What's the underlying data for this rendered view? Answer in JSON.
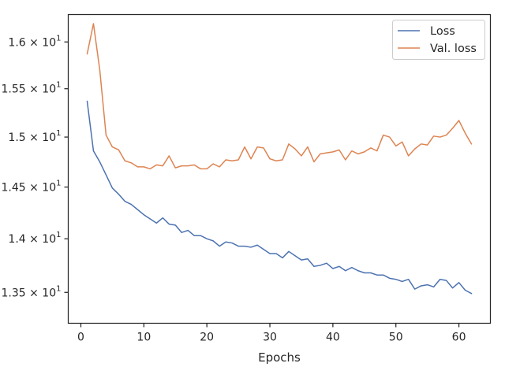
{
  "chart_data": {
    "type": "line",
    "title": "",
    "xlabel": "Epochs",
    "ylabel": "",
    "yscale": "log",
    "xlim": [
      -2,
      65
    ],
    "ylim": [
      13.22,
      16.3
    ],
    "x_ticks": [
      {
        "value": 0,
        "label": "0"
      },
      {
        "value": 10,
        "label": "10"
      },
      {
        "value": 20,
        "label": "20"
      },
      {
        "value": 30,
        "label": "30"
      },
      {
        "value": 40,
        "label": "40"
      },
      {
        "value": 50,
        "label": "50"
      },
      {
        "value": 60,
        "label": "60"
      }
    ],
    "y_ticks": [
      {
        "value": 13.5,
        "mantissa": "1.35",
        "base": "10",
        "exp": "1"
      },
      {
        "value": 14.0,
        "mantissa": "1.4",
        "base": "10",
        "exp": "1"
      },
      {
        "value": 14.5,
        "mantissa": "1.45",
        "base": "10",
        "exp": "1"
      },
      {
        "value": 15.0,
        "mantissa": "1.5",
        "base": "10",
        "exp": "1"
      },
      {
        "value": 15.5,
        "mantissa": "1.55",
        "base": "10",
        "exp": "1"
      },
      {
        "value": 16.0,
        "mantissa": "1.6",
        "base": "10",
        "exp": "1"
      }
    ],
    "legend_position": "top-right",
    "series": [
      {
        "name": "Loss",
        "color": "#4c72b0",
        "x": [
          1,
          2,
          3,
          4,
          5,
          6,
          7,
          8,
          9,
          10,
          11,
          12,
          13,
          14,
          15,
          16,
          17,
          18,
          19,
          20,
          21,
          22,
          23,
          24,
          25,
          26,
          27,
          28,
          29,
          30,
          31,
          32,
          33,
          34,
          35,
          36,
          37,
          38,
          39,
          40,
          41,
          42,
          43,
          44,
          45,
          46,
          47,
          48,
          49,
          50,
          51,
          52,
          53,
          54,
          55,
          56,
          57,
          58,
          59,
          60,
          61,
          62
        ],
        "values": [
          15.37,
          14.86,
          14.75,
          14.62,
          14.49,
          14.43,
          14.36,
          14.33,
          14.28,
          14.23,
          14.19,
          14.15,
          14.2,
          14.14,
          14.13,
          14.06,
          14.08,
          14.03,
          14.03,
          14.0,
          13.98,
          13.93,
          13.97,
          13.96,
          13.93,
          13.93,
          13.92,
          13.94,
          13.9,
          13.86,
          13.86,
          13.82,
          13.88,
          13.84,
          13.8,
          13.81,
          13.74,
          13.75,
          13.77,
          13.72,
          13.74,
          13.7,
          13.73,
          13.7,
          13.68,
          13.68,
          13.66,
          13.66,
          13.63,
          13.62,
          13.6,
          13.62,
          13.53,
          13.56,
          13.57,
          13.55,
          13.62,
          13.61,
          13.54,
          13.59,
          13.52,
          13.49
        ]
      },
      {
        "name": "Val. loss",
        "color": "#dd8452",
        "x": [
          1,
          2,
          3,
          4,
          5,
          6,
          7,
          8,
          9,
          10,
          11,
          12,
          13,
          14,
          15,
          16,
          17,
          18,
          19,
          20,
          21,
          22,
          23,
          24,
          25,
          26,
          27,
          28,
          29,
          30,
          31,
          32,
          33,
          34,
          35,
          36,
          37,
          38,
          39,
          40,
          41,
          42,
          43,
          44,
          45,
          46,
          47,
          48,
          49,
          50,
          51,
          52,
          53,
          54,
          55,
          56,
          57,
          58,
          59,
          60,
          61,
          62
        ],
        "values": [
          15.87,
          16.2,
          15.7,
          15.02,
          14.9,
          14.87,
          14.76,
          14.74,
          14.7,
          14.7,
          14.68,
          14.72,
          14.71,
          14.81,
          14.69,
          14.71,
          14.71,
          14.72,
          14.68,
          14.68,
          14.73,
          14.7,
          14.77,
          14.76,
          14.77,
          14.9,
          14.78,
          14.9,
          14.89,
          14.78,
          14.76,
          14.77,
          14.93,
          14.88,
          14.81,
          14.9,
          14.75,
          14.83,
          14.84,
          14.85,
          14.87,
          14.77,
          14.86,
          14.83,
          14.85,
          14.89,
          14.86,
          15.02,
          15.0,
          14.91,
          14.95,
          14.81,
          14.88,
          14.93,
          14.92,
          15.01,
          15.0,
          15.02,
          15.09,
          15.17,
          15.04,
          14.93
        ]
      }
    ]
  }
}
